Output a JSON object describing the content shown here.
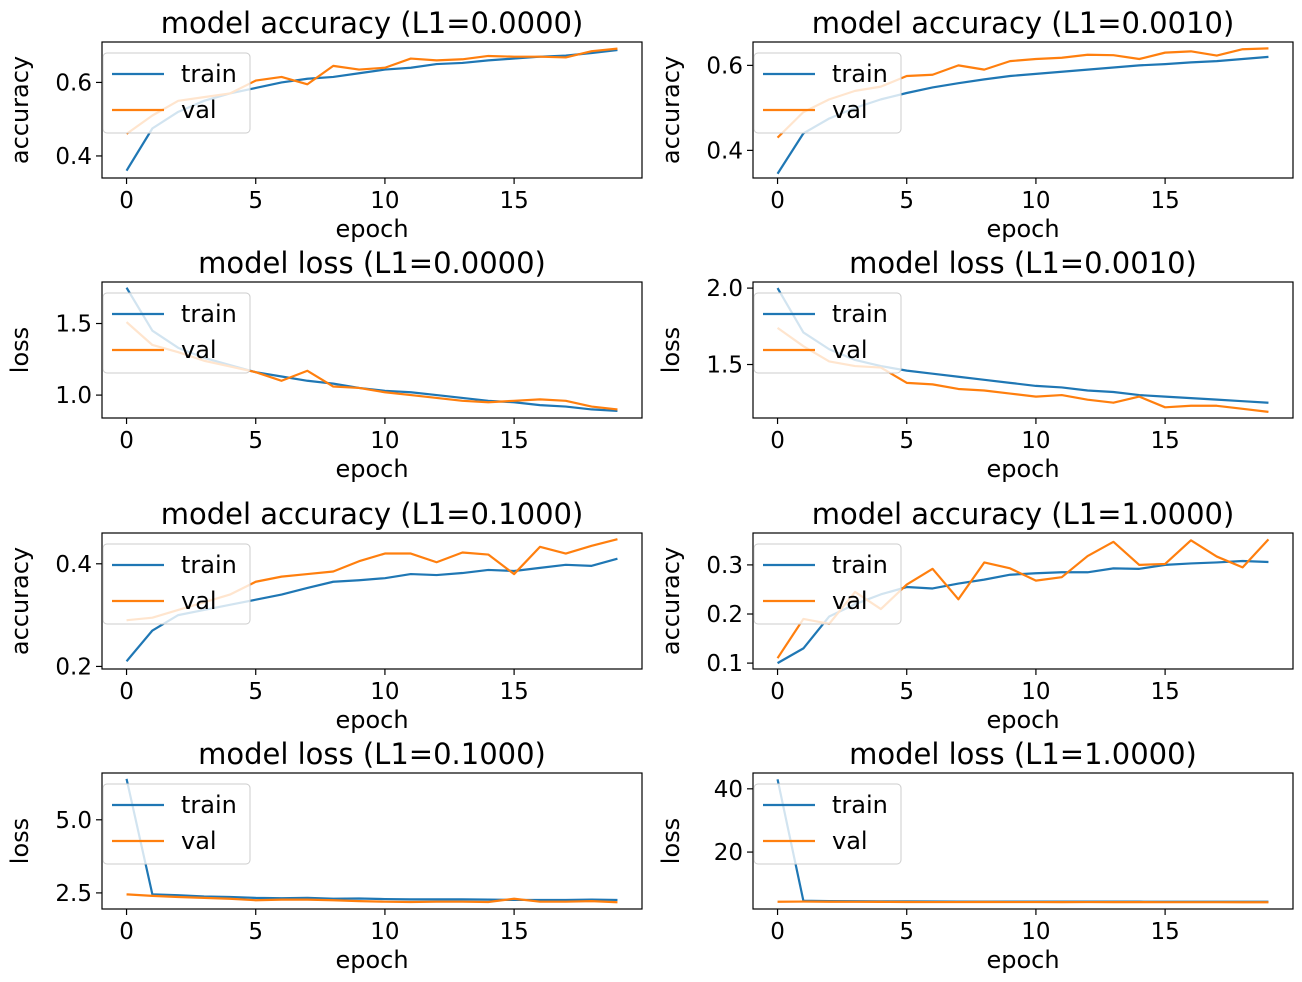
{
  "colors": {
    "train": "#1f77b4",
    "val": "#ff7f0e"
  },
  "chart_data": [
    {
      "type": "line",
      "title": "model accuracy (L1=0.0000)",
      "xlabel": "epoch",
      "ylabel": "accuracy",
      "xlim": [
        -0.95,
        19.95
      ],
      "ylim": [
        0.34,
        0.71
      ],
      "xticks": [
        0,
        5,
        10,
        15
      ],
      "yticks": [
        0.4,
        0.6
      ],
      "x": [
        0,
        1,
        2,
        3,
        4,
        5,
        6,
        7,
        8,
        9,
        10,
        11,
        12,
        13,
        14,
        15,
        16,
        17,
        18,
        19
      ],
      "legend": "upper left",
      "series": [
        {
          "name": "train",
          "values": [
            0.36,
            0.475,
            0.52,
            0.55,
            0.57,
            0.585,
            0.6,
            0.61,
            0.615,
            0.625,
            0.635,
            0.64,
            0.65,
            0.653,
            0.66,
            0.665,
            0.67,
            0.673,
            0.68,
            0.688
          ]
        },
        {
          "name": "val",
          "values": [
            0.46,
            0.51,
            0.55,
            0.56,
            0.57,
            0.605,
            0.615,
            0.595,
            0.645,
            0.635,
            0.64,
            0.665,
            0.66,
            0.663,
            0.672,
            0.67,
            0.67,
            0.668,
            0.685,
            0.692
          ]
        }
      ]
    },
    {
      "type": "line",
      "title": "model accuracy (L1=0.0010)",
      "xlabel": "epoch",
      "ylabel": "accuracy",
      "xlim": [
        -0.95,
        19.95
      ],
      "ylim": [
        0.335,
        0.655
      ],
      "xticks": [
        0,
        5,
        10,
        15
      ],
      "yticks": [
        0.4,
        0.6
      ],
      "x": [
        0,
        1,
        2,
        3,
        4,
        5,
        6,
        7,
        8,
        9,
        10,
        11,
        12,
        13,
        14,
        15,
        16,
        17,
        18,
        19
      ],
      "legend": "upper left",
      "series": [
        {
          "name": "train",
          "values": [
            0.345,
            0.44,
            0.475,
            0.5,
            0.52,
            0.535,
            0.548,
            0.558,
            0.567,
            0.575,
            0.58,
            0.585,
            0.59,
            0.595,
            0.6,
            0.603,
            0.607,
            0.61,
            0.615,
            0.62
          ]
        },
        {
          "name": "val",
          "values": [
            0.43,
            0.49,
            0.52,
            0.54,
            0.55,
            0.575,
            0.578,
            0.6,
            0.59,
            0.61,
            0.615,
            0.618,
            0.625,
            0.624,
            0.615,
            0.63,
            0.633,
            0.623,
            0.638,
            0.64
          ]
        }
      ]
    },
    {
      "type": "line",
      "title": "model loss (L1=0.0000)",
      "xlabel": "epoch",
      "ylabel": "loss",
      "xlim": [
        -0.95,
        19.95
      ],
      "ylim": [
        0.84,
        1.79
      ],
      "xticks": [
        0,
        5,
        10,
        15
      ],
      "yticks": [
        1.0,
        1.5
      ],
      "ytick_labels": [
        "1.0",
        "1.5"
      ],
      "x": [
        0,
        1,
        2,
        3,
        4,
        5,
        6,
        7,
        8,
        9,
        10,
        11,
        12,
        13,
        14,
        15,
        16,
        17,
        18,
        19
      ],
      "legend": "upper left",
      "series": [
        {
          "name": "train",
          "values": [
            1.75,
            1.45,
            1.33,
            1.26,
            1.21,
            1.16,
            1.13,
            1.1,
            1.08,
            1.05,
            1.03,
            1.02,
            1.0,
            0.98,
            0.96,
            0.95,
            0.93,
            0.92,
            0.9,
            0.89
          ]
        },
        {
          "name": "val",
          "values": [
            1.51,
            1.35,
            1.3,
            1.24,
            1.2,
            1.16,
            1.1,
            1.17,
            1.06,
            1.05,
            1.02,
            1.0,
            0.98,
            0.96,
            0.95,
            0.96,
            0.97,
            0.96,
            0.92,
            0.9
          ]
        }
      ]
    },
    {
      "type": "line",
      "title": "model loss (L1=0.0010)",
      "xlabel": "epoch",
      "ylabel": "loss",
      "xlim": [
        -0.95,
        19.95
      ],
      "ylim": [
        1.15,
        2.04
      ],
      "xticks": [
        0,
        5,
        10,
        15
      ],
      "yticks": [
        1.5,
        2.0
      ],
      "ytick_labels": [
        "1.5",
        "2.0"
      ],
      "x": [
        0,
        1,
        2,
        3,
        4,
        5,
        6,
        7,
        8,
        9,
        10,
        11,
        12,
        13,
        14,
        15,
        16,
        17,
        18,
        19
      ],
      "legend": "upper left",
      "series": [
        {
          "name": "train",
          "values": [
            2.0,
            1.71,
            1.6,
            1.53,
            1.49,
            1.46,
            1.44,
            1.42,
            1.4,
            1.38,
            1.36,
            1.35,
            1.33,
            1.32,
            1.3,
            1.29,
            1.28,
            1.27,
            1.26,
            1.25
          ]
        },
        {
          "name": "val",
          "values": [
            1.74,
            1.62,
            1.52,
            1.49,
            1.48,
            1.38,
            1.37,
            1.34,
            1.33,
            1.31,
            1.29,
            1.3,
            1.27,
            1.25,
            1.29,
            1.22,
            1.23,
            1.23,
            1.21,
            1.19
          ]
        }
      ]
    },
    {
      "type": "line",
      "title": "model accuracy (L1=0.1000)",
      "xlabel": "epoch",
      "ylabel": "accuracy",
      "xlim": [
        -0.95,
        19.95
      ],
      "ylim": [
        0.195,
        0.46
      ],
      "xticks": [
        0,
        5,
        10,
        15
      ],
      "yticks": [
        0.2,
        0.4
      ],
      "x": [
        0,
        1,
        2,
        3,
        4,
        5,
        6,
        7,
        8,
        9,
        10,
        11,
        12,
        13,
        14,
        15,
        16,
        17,
        18,
        19
      ],
      "legend": "upper left",
      "series": [
        {
          "name": "train",
          "values": [
            0.21,
            0.27,
            0.3,
            0.31,
            0.32,
            0.33,
            0.34,
            0.353,
            0.365,
            0.368,
            0.372,
            0.38,
            0.378,
            0.382,
            0.388,
            0.386,
            0.392,
            0.398,
            0.396,
            0.41
          ]
        },
        {
          "name": "val",
          "values": [
            0.29,
            0.295,
            0.31,
            0.325,
            0.34,
            0.365,
            0.375,
            0.38,
            0.385,
            0.405,
            0.42,
            0.42,
            0.403,
            0.422,
            0.418,
            0.38,
            0.433,
            0.42,
            0.435,
            0.448
          ]
        }
      ]
    },
    {
      "type": "line",
      "title": "model accuracy (L1=1.0000)",
      "xlabel": "epoch",
      "ylabel": "accuracy",
      "xlim": [
        -0.95,
        19.95
      ],
      "ylim": [
        0.088,
        0.365
      ],
      "xticks": [
        0,
        5,
        10,
        15
      ],
      "yticks": [
        0.1,
        0.2,
        0.3
      ],
      "x": [
        0,
        1,
        2,
        3,
        4,
        5,
        6,
        7,
        8,
        9,
        10,
        11,
        12,
        13,
        14,
        15,
        16,
        17,
        18,
        19
      ],
      "legend": "upper left",
      "series": [
        {
          "name": "train",
          "values": [
            0.1,
            0.13,
            0.195,
            0.22,
            0.24,
            0.255,
            0.252,
            0.262,
            0.27,
            0.28,
            0.283,
            0.285,
            0.285,
            0.293,
            0.292,
            0.3,
            0.303,
            0.305,
            0.308,
            0.306
          ]
        },
        {
          "name": "val",
          "values": [
            0.11,
            0.19,
            0.18,
            0.245,
            0.21,
            0.26,
            0.292,
            0.23,
            0.305,
            0.293,
            0.268,
            0.275,
            0.318,
            0.347,
            0.3,
            0.302,
            0.35,
            0.317,
            0.295,
            0.352
          ]
        }
      ]
    },
    {
      "type": "line",
      "title": "model loss (L1=0.1000)",
      "xlabel": "epoch",
      "ylabel": "loss",
      "xlim": [
        -0.95,
        19.95
      ],
      "ylim": [
        1.95,
        6.6
      ],
      "xticks": [
        0,
        5,
        10,
        15
      ],
      "yticks": [
        2.5,
        5.0
      ],
      "ytick_labels": [
        "2.5",
        "5.0"
      ],
      "x": [
        0,
        1,
        2,
        3,
        4,
        5,
        6,
        7,
        8,
        9,
        10,
        11,
        12,
        13,
        14,
        15,
        16,
        17,
        18,
        19
      ],
      "legend": "upper left",
      "series": [
        {
          "name": "train",
          "values": [
            6.4,
            2.45,
            2.42,
            2.38,
            2.36,
            2.33,
            2.32,
            2.33,
            2.3,
            2.31,
            2.29,
            2.28,
            2.28,
            2.28,
            2.27,
            2.26,
            2.26,
            2.26,
            2.27,
            2.26
          ]
        },
        {
          "name": "val",
          "values": [
            2.45,
            2.4,
            2.36,
            2.33,
            2.3,
            2.25,
            2.27,
            2.27,
            2.25,
            2.22,
            2.2,
            2.19,
            2.2,
            2.2,
            2.19,
            2.3,
            2.2,
            2.2,
            2.22,
            2.18
          ]
        }
      ]
    },
    {
      "type": "line",
      "title": "model loss (L1=1.0000)",
      "xlabel": "epoch",
      "ylabel": "loss",
      "xlim": [
        -0.95,
        19.95
      ],
      "ylim": [
        2.0,
        45.0
      ],
      "xticks": [
        0,
        5,
        10,
        15
      ],
      "yticks": [
        20,
        40
      ],
      "ytick_labels": [
        "20",
        "40"
      ],
      "x": [
        0,
        1,
        2,
        3,
        4,
        5,
        6,
        7,
        8,
        9,
        10,
        11,
        12,
        13,
        14,
        15,
        16,
        17,
        18,
        19
      ],
      "legend": "upper left",
      "series": [
        {
          "name": "train",
          "values": [
            43.0,
            4.6,
            4.5,
            4.45,
            4.42,
            4.4,
            4.38,
            4.36,
            4.36,
            4.35,
            4.34,
            4.34,
            4.33,
            4.32,
            4.32,
            4.3,
            4.3,
            4.3,
            4.29,
            4.29
          ]
        },
        {
          "name": "val",
          "values": [
            4.3,
            4.35,
            4.3,
            4.28,
            4.25,
            4.22,
            4.2,
            4.2,
            4.22,
            4.2,
            4.2,
            4.18,
            4.2,
            4.18,
            4.17,
            4.16,
            4.15,
            4.15,
            4.14,
            4.14
          ]
        }
      ]
    }
  ]
}
